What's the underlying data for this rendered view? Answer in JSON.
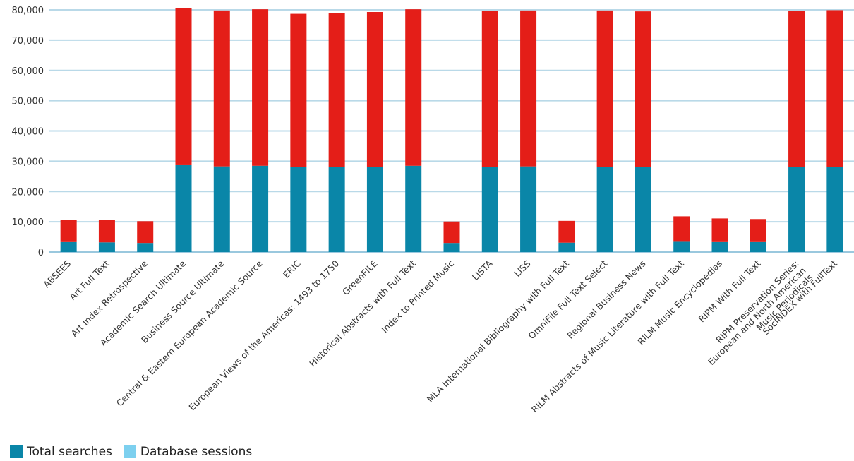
{
  "chart_data": {
    "type": "bar",
    "stacked": true,
    "categories": [
      "ABSEES",
      "Art Full Text",
      "Art Index Retrospective",
      "Academic Search Ultimate",
      "Business Source Ultimate",
      "Central & Eastern European Academic Source",
      "ERIC",
      "European Views of the Americas: 1493 to 1750",
      "GreenFILE",
      "Historical Abstracts with Full Text",
      "Index to Printed Music",
      "LISTA",
      "LISS",
      "MLA International Bibliography with Full Text",
      "OmniFile Full Text Select",
      "Regional Business News",
      "RILM Abstracts of Music Literature with Full Text",
      "RILM Music Encyclopedias",
      "RIPM With Full Text",
      [
        "RIPM  Preservation Series:",
        "European and North American",
        "Music Periodicals"
      ],
      "SocINDEX with FullText"
    ],
    "series": [
      {
        "name": "Total searches",
        "color": "#0a86a8",
        "values": [
          3300,
          3200,
          3000,
          28700,
          28300,
          28500,
          28000,
          28200,
          28200,
          28500,
          3000,
          28200,
          28300,
          3100,
          28200,
          28200,
          3400,
          3300,
          3300,
          28200,
          28200
        ]
      },
      {
        "name": "",
        "color": "#e41e18",
        "values": [
          7400,
          7300,
          7200,
          52000,
          51500,
          51700,
          50700,
          50800,
          51100,
          51700,
          7100,
          51400,
          51500,
          7200,
          51600,
          51300,
          8400,
          7800,
          7600,
          51500,
          51700
        ]
      }
    ],
    "legend": [
      {
        "label": "Total searches",
        "color": "#0a86a8"
      },
      {
        "label": "Database sessions",
        "color": "#7dd0ef"
      }
    ],
    "ylim": [
      0,
      80000
    ],
    "yticks": [
      "0",
      "10,000",
      "20,000",
      "30,000",
      "40,000",
      "50,000",
      "60,000",
      "70,000",
      "80,000"
    ],
    "grid": true,
    "legend_position": "bottom-left",
    "xlabel": "",
    "ylabel": "",
    "title": ""
  }
}
